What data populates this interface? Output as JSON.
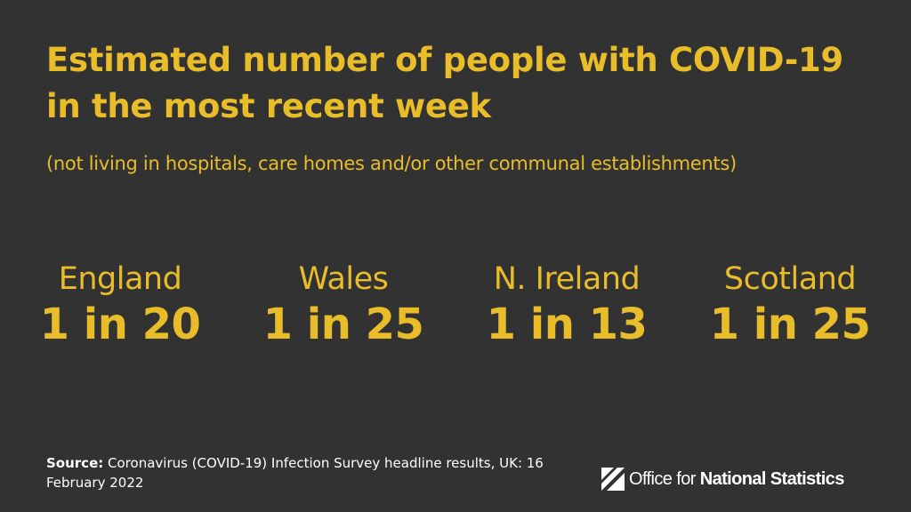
{
  "title": "Estimated number of people with COVID-19 in the most recent week",
  "subtitle": "(not living in hospitals, care homes and/or other communal establishments)",
  "stats": [
    {
      "region": "England",
      "value": "1 in 20"
    },
    {
      "region": "Wales",
      "value": "1 in 25"
    },
    {
      "region": "N. Ireland",
      "value": "1 in 13"
    },
    {
      "region": "Scotland",
      "value": "1 in 25"
    }
  ],
  "source": {
    "label": "Source:",
    "text": "Coronavirus (COVID-19) Infection Survey headline results, UK: 16 February 2022"
  },
  "logo": {
    "text_regular": "Office for ",
    "text_bold": "National Statistics"
  },
  "colors": {
    "background": "#323232",
    "accent": "#e9bc2a",
    "text": "#ffffff"
  }
}
